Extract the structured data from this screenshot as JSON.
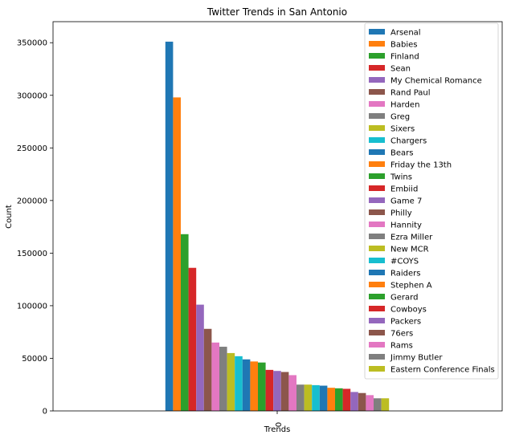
{
  "chart_data": {
    "type": "bar",
    "title": "Twitter Trends in San Antonio",
    "xlabel": "Trends",
    "ylabel": "Count",
    "categories": [
      "0"
    ],
    "ylim": [
      0,
      370000
    ],
    "yticks": [
      0,
      50000,
      100000,
      150000,
      200000,
      250000,
      300000,
      350000
    ],
    "ytick_labels": [
      "0",
      "50000",
      "100000",
      "150000",
      "200000",
      "250000",
      "300000",
      "350000"
    ],
    "legend_position": "upper-right",
    "grid": false,
    "series": [
      {
        "name": "Arsenal",
        "values": [
          351000
        ],
        "color": "#1f77b4"
      },
      {
        "name": "Babies",
        "values": [
          298000
        ],
        "color": "#ff7f0e"
      },
      {
        "name": "Finland",
        "values": [
          168000
        ],
        "color": "#2ca02c"
      },
      {
        "name": "Sean",
        "values": [
          136000
        ],
        "color": "#d62728"
      },
      {
        "name": "My Chemical Romance",
        "values": [
          101000
        ],
        "color": "#9467bd"
      },
      {
        "name": "Rand Paul",
        "values": [
          78000
        ],
        "color": "#8c564b"
      },
      {
        "name": "Harden",
        "values": [
          65000
        ],
        "color": "#e377c2"
      },
      {
        "name": "Greg",
        "values": [
          61000
        ],
        "color": "#7f7f7f"
      },
      {
        "name": "Sixers",
        "values": [
          55000
        ],
        "color": "#bcbd22"
      },
      {
        "name": "Chargers",
        "values": [
          52000
        ],
        "color": "#17becf"
      },
      {
        "name": "Bears",
        "values": [
          49000
        ],
        "color": "#1f77b4"
      },
      {
        "name": "Friday the 13th",
        "values": [
          47000
        ],
        "color": "#ff7f0e"
      },
      {
        "name": "Twins",
        "values": [
          46000
        ],
        "color": "#2ca02c"
      },
      {
        "name": "Embiid",
        "values": [
          39000
        ],
        "color": "#d62728"
      },
      {
        "name": "Game 7",
        "values": [
          38000
        ],
        "color": "#9467bd"
      },
      {
        "name": "Philly",
        "values": [
          37000
        ],
        "color": "#8c564b"
      },
      {
        "name": "Hannity",
        "values": [
          34000
        ],
        "color": "#e377c2"
      },
      {
        "name": "Ezra Miller",
        "values": [
          25000
        ],
        "color": "#7f7f7f"
      },
      {
        "name": "New MCR",
        "values": [
          25000
        ],
        "color": "#bcbd22"
      },
      {
        "name": "#COYS",
        "values": [
          24500
        ],
        "color": "#17becf"
      },
      {
        "name": "Raiders",
        "values": [
          24000
        ],
        "color": "#1f77b4"
      },
      {
        "name": "Stephen A",
        "values": [
          22000
        ],
        "color": "#ff7f0e"
      },
      {
        "name": "Gerard",
        "values": [
          21500
        ],
        "color": "#2ca02c"
      },
      {
        "name": "Cowboys",
        "values": [
          21000
        ],
        "color": "#d62728"
      },
      {
        "name": "Packers",
        "values": [
          18000
        ],
        "color": "#9467bd"
      },
      {
        "name": "76ers",
        "values": [
          17000
        ],
        "color": "#8c564b"
      },
      {
        "name": "Rams",
        "values": [
          15000
        ],
        "color": "#e377c2"
      },
      {
        "name": "Jimmy Butler",
        "values": [
          12000
        ],
        "color": "#7f7f7f"
      },
      {
        "name": "Eastern Conference Finals",
        "values": [
          12000
        ],
        "color": "#bcbd22"
      }
    ]
  }
}
